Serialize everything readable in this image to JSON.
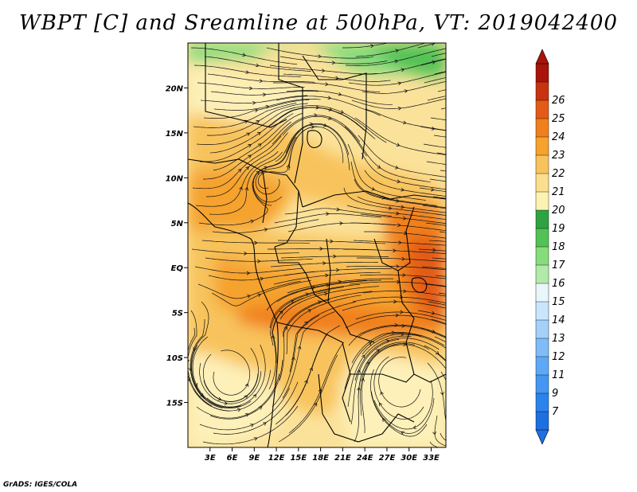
{
  "title": "WBPT [C] and Sreamline at 500hPa, VT: 2019042400",
  "credit": "GrADS: IGES/COLA",
  "map": {
    "lon_range": [
      0,
      35
    ],
    "lat_range": [
      -20,
      25
    ],
    "x_ticks": [
      "3E",
      "6E",
      "9E",
      "12E",
      "15E",
      "18E",
      "21E",
      "24E",
      "27E",
      "30E",
      "33E"
    ],
    "y_ticks": [
      "20N",
      "15N",
      "10N",
      "5N",
      "EQ",
      "5S",
      "10S",
      "15S"
    ]
  },
  "colorbar": {
    "labels": [
      "7",
      "9",
      "11",
      "12",
      "13",
      "14",
      "15",
      "16",
      "17",
      "18",
      "19",
      "20",
      "21",
      "22",
      "23",
      "24",
      "25",
      "26"
    ],
    "colors": [
      "#1e6fe0",
      "#2b83ec",
      "#4496f2",
      "#5ea9f5",
      "#7fbcf8",
      "#a3d1fa",
      "#c9e6fc",
      "#e9f6fb",
      "#b2eaa9",
      "#86dc7b",
      "#52c254",
      "#2ea343",
      "#fdf3b0",
      "#fbdf8e",
      "#f8c35c",
      "#f5a22e",
      "#f0801d",
      "#e35b17",
      "#c8330f",
      "#a8140a"
    ],
    "arrow_low_color": "#1e6fe0",
    "arrow_high_color": "#a8140a"
  },
  "field_colors": {
    "green_dark": "#52c254",
    "green_light": "#86dc7b",
    "base_yellow": "#fbe29a",
    "pale_yellow": "#fdf0b8",
    "orange_light": "#f8c35c",
    "orange": "#f5a22e",
    "orange_dark": "#f0801d",
    "red_orange": "#e35b17"
  }
}
